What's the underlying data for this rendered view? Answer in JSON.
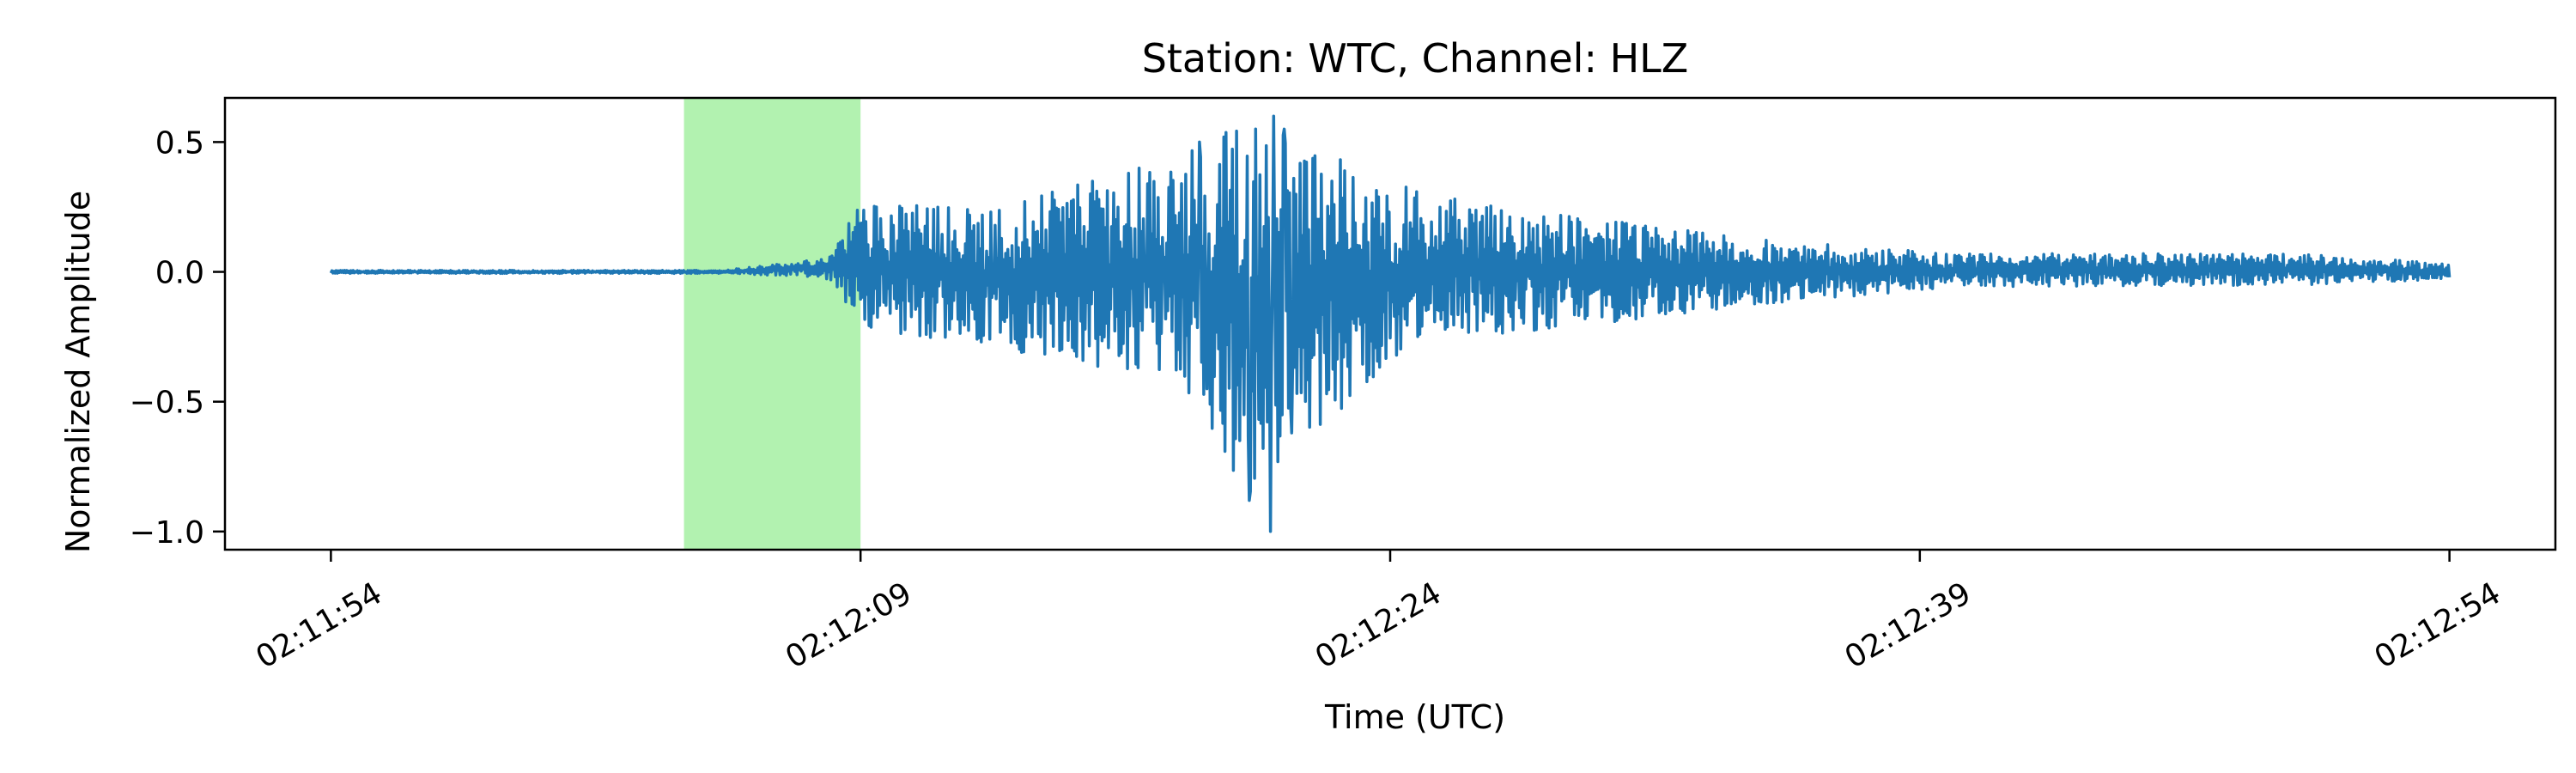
{
  "chart_data": {
    "type": "line",
    "title": "Station: WTC, Channel: HLZ",
    "xlabel": "Time (UTC)",
    "ylabel": "Normalized Amplitude",
    "x_start": "02:11:54",
    "x_end": "02:12:54",
    "xlim": [
      "02:11:51",
      "02:12:57"
    ],
    "ylim": [
      -1.07,
      0.67
    ],
    "x_ticks": [
      "02:11:54",
      "02:12:09",
      "02:12:24",
      "02:12:39",
      "02:12:54"
    ],
    "y_ticks": [
      {
        "value": 0.5,
        "label": "0.5"
      },
      {
        "value": 0.0,
        "label": "0.0"
      },
      {
        "value": -0.5,
        "label": "−0.5"
      },
      {
        "value": -1.0,
        "label": "−1.0"
      }
    ],
    "highlight": {
      "x_start": "02:12:04",
      "x_end": "02:12:09",
      "color": "#b2f2b0"
    },
    "series": [
      {
        "color": "#1f77b4",
        "envelope": [
          [
            "02:11:54",
            -0.006,
            0.006
          ],
          [
            "02:12:05",
            -0.006,
            0.006
          ],
          [
            "02:12:08",
            -0.02,
            0.05
          ],
          [
            "02:12:09",
            -0.22,
            0.27
          ],
          [
            "02:12:13",
            -0.3,
            0.25
          ],
          [
            "02:12:18",
            -0.42,
            0.45
          ],
          [
            "02:12:20",
            -0.88,
            0.6
          ],
          [
            "02:12:22",
            -0.6,
            0.47
          ],
          [
            "02:12:25",
            -0.28,
            0.3
          ],
          [
            "02:12:30",
            -0.2,
            0.2
          ],
          [
            "02:12:35",
            -0.12,
            0.12
          ],
          [
            "02:12:40",
            -0.06,
            0.07
          ],
          [
            "02:12:50",
            -0.05,
            0.07
          ],
          [
            "02:12:54",
            -0.03,
            0.03
          ]
        ],
        "peaks": [
          {
            "t": "02:12:20.0",
            "y": -0.88
          },
          {
            "t": "02:12:20.2",
            "y": 0.55
          },
          {
            "t": "02:12:20.4",
            "y": -0.68
          },
          {
            "t": "02:12:20.6",
            "y": -1.0
          },
          {
            "t": "02:12:20.7",
            "y": 0.6
          },
          {
            "t": "02:12:21.0",
            "y": 0.55
          },
          {
            "t": "02:12:21.2",
            "y": -0.62
          },
          {
            "t": "02:12:18.6",
            "y": 0.5
          },
          {
            "t": "02:12:18.8",
            "y": -0.45
          }
        ]
      }
    ]
  }
}
